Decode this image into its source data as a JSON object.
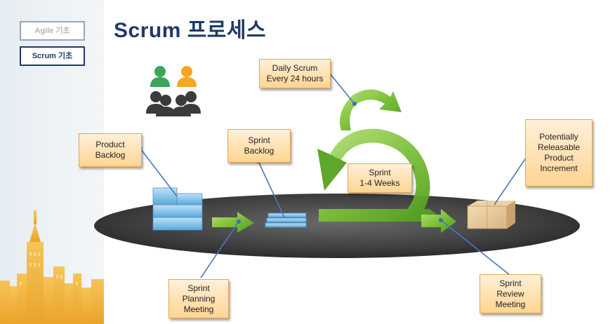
{
  "nav": {
    "agile_label": "Agile 기초",
    "scrum_label": "Scrum 기초"
  },
  "page": {
    "title": "Scrum 프로세스"
  },
  "diagram": {
    "daily_scrum": "Daily Scrum\nEvery 24 hours",
    "product_backlog": "Product\nBacklog",
    "sprint_backlog": "Sprint\nBacklog",
    "sprint": "Sprint\n1-4 Weeks",
    "increment": "Potentially\nReleasable\nProduct\nIncrement",
    "planning": "Sprint\nPlanning\nMeeting",
    "review": "Sprint\nReview\nMeeting"
  },
  "colors": {
    "title": "#1f3a68",
    "arrow_green": "#7cc03a",
    "callout_border": "#e9a64a",
    "platform": "#3d3d3d",
    "person_green": "#3aa65a",
    "person_orange": "#f5a623",
    "person_dark": "#3b3b3b",
    "skyline": "#f1b43a"
  }
}
